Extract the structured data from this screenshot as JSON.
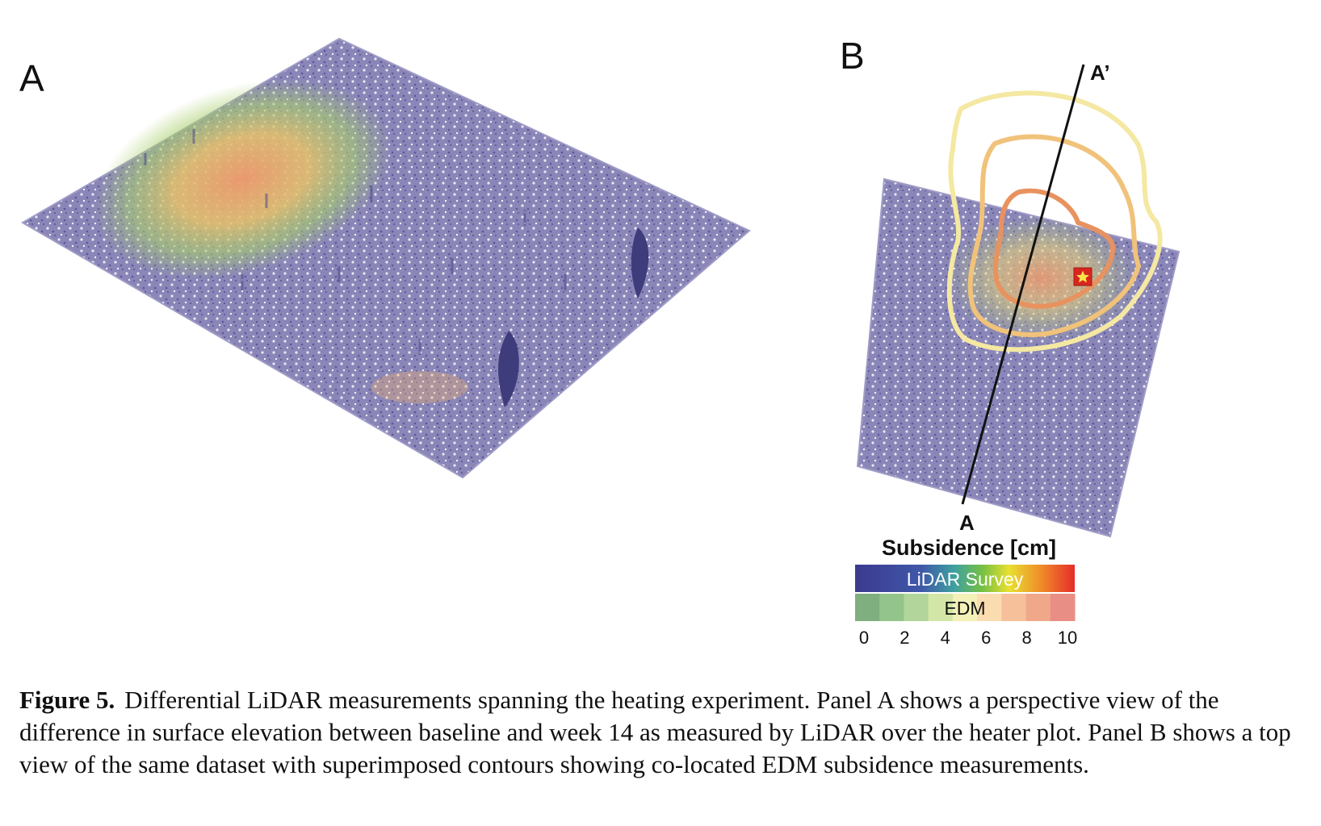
{
  "panel_a": {
    "label": "A"
  },
  "panel_b": {
    "label": "B",
    "transect_start_label": "A",
    "transect_end_label": "A’"
  },
  "legend": {
    "title": "Subsidence [cm]",
    "lidar_label": "LiDAR Survey",
    "edm_label": "EDM",
    "ticks": [
      "0",
      "2",
      "4",
      "6",
      "8",
      "10"
    ],
    "lidar_colors": [
      "#3b3a8f",
      "#3f57a8",
      "#3ea0a0",
      "#76c043",
      "#e8e030",
      "#f08a2a",
      "#e52d2a"
    ],
    "edm_colors": [
      "#7fae7f",
      "#93c48b",
      "#b1d59a",
      "#d3e6a8",
      "#f3f0b8",
      "#fbdcb0",
      "#f6c19a",
      "#f0a88a",
      "#e98e85"
    ]
  },
  "caption": {
    "label": "Figure 5.",
    "text": "Differential LiDAR measurements spanning the heating experiment. Panel A shows a perspective view of the difference in surface elevation between baseline and week 14 as measured by LiDAR over the heater plot. Panel B shows a top view of the same dataset with superimposed contours showing co-located EDM subsidence measurements."
  }
}
